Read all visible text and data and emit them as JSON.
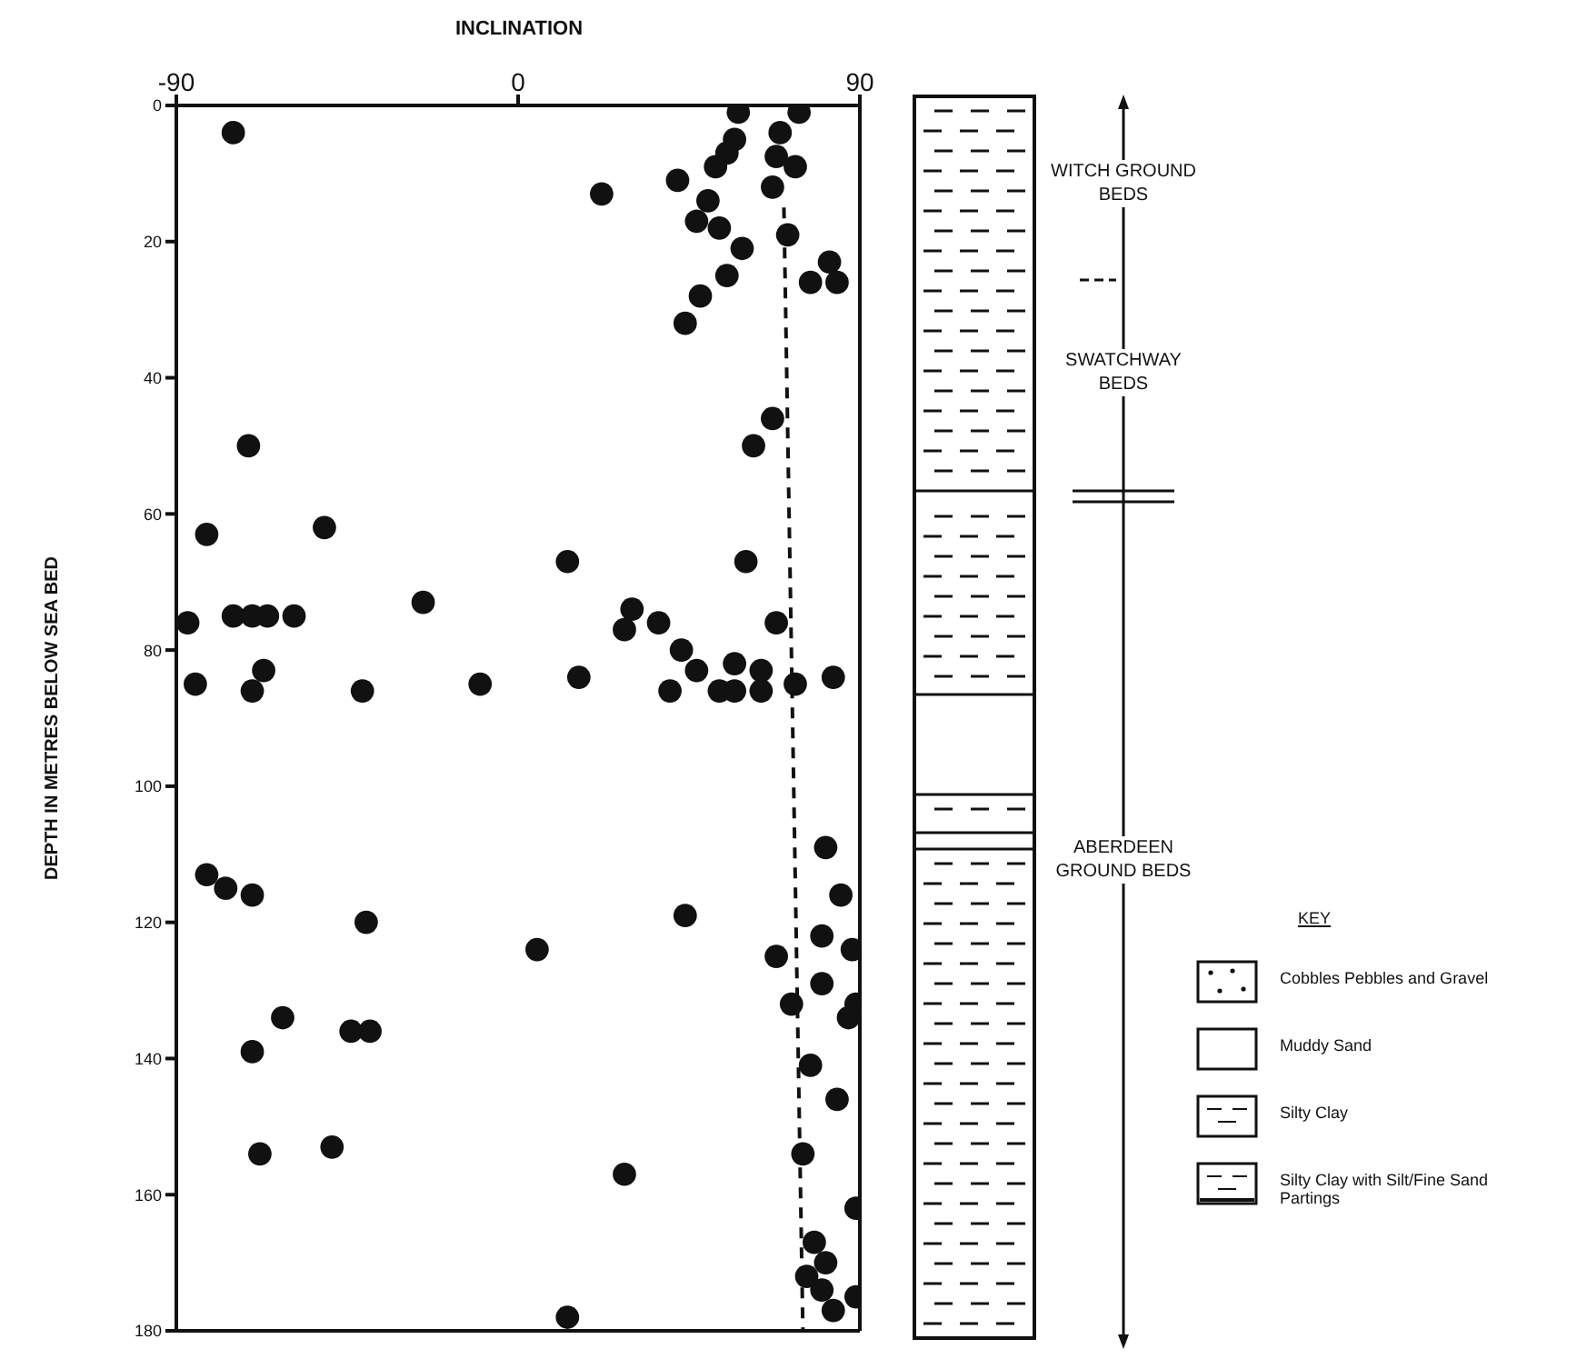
{
  "chart_data": {
    "type": "scatter",
    "xlabel": "INCLINATION",
    "ylabel": "DEPTH IN METRES BELOW SEA BED",
    "xlim": [
      -90,
      90
    ],
    "xticks": [
      -90,
      0,
      90
    ],
    "ylim": [
      180,
      0
    ],
    "yticks": [
      0,
      20,
      40,
      60,
      80,
      100,
      120,
      140,
      160,
      180
    ],
    "series": [
      {
        "color": "#111111",
        "marker": "circle",
        "x": [
          -75,
          22,
          58,
          74,
          57,
          69,
          55,
          68,
          52,
          73,
          42,
          67,
          50,
          47,
          53,
          71,
          59,
          82,
          55,
          77,
          84,
          48,
          44,
          67,
          -71,
          62,
          -82,
          -51,
          13,
          60,
          -25,
          -87,
          -75,
          -70,
          -66,
          -59,
          30,
          28,
          37,
          68,
          43,
          47,
          57,
          64,
          73,
          83,
          -67,
          16,
          -85,
          -70,
          -41,
          -10,
          40,
          53,
          57,
          64,
          81,
          -82,
          -77,
          -70,
          85,
          -40,
          44,
          80,
          5,
          88,
          68,
          80,
          72,
          89,
          87,
          -62,
          -44,
          -39,
          -70,
          77,
          84,
          -68,
          -49,
          75,
          28,
          89,
          78,
          81,
          76,
          80,
          89,
          83,
          13
        ],
        "values": [
          4,
          13,
          1,
          1,
          5,
          4,
          7,
          7.5,
          9,
          9,
          11,
          12,
          14,
          17,
          18,
          19,
          21,
          23,
          25,
          26,
          26,
          28,
          32,
          46,
          50,
          50,
          63,
          62,
          67,
          67,
          73,
          76,
          75,
          75,
          75,
          75,
          74,
          77,
          76,
          76,
          80,
          83,
          82,
          83,
          85,
          84,
          83,
          84,
          85,
          86,
          86,
          85,
          86,
          86,
          86,
          86,
          109,
          113,
          115,
          116,
          116,
          120,
          119,
          122,
          124,
          124,
          125,
          129,
          132,
          132,
          134,
          134,
          136,
          136,
          139,
          141,
          146,
          154,
          153,
          154,
          157,
          162,
          167,
          170,
          172,
          174,
          175,
          177,
          178
        ]
      },
      {
        "type": "line",
        "color": "#111111",
        "marker": "none",
        "line_style": "dashed",
        "x": [
          70,
          75
        ],
        "values": [
          15,
          180
        ]
      }
    ],
    "annotations": [
      "WITCH GROUND BEDS",
      "SWATCHWAY BEDS",
      "ABERDEEN GROUND BEDS",
      "KEY",
      "Cobbles Pebbles and Gravel",
      "Muddy Sand",
      "Silty Clay",
      "Silty Clay with Silt/Fine Sand Partings"
    ]
  }
}
